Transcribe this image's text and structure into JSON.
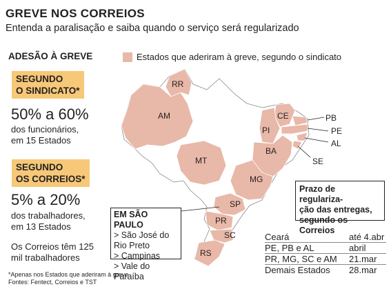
{
  "header": {
    "title": "GREVE NOS CORREIOS",
    "subtitle": "Entenda a paralisação e saiba quando o serviço será regularizado"
  },
  "adesao": {
    "heading": "ADESÃO À GREVE",
    "sindicato_label_1": "SEGUNDO",
    "sindicato_label_2": "O SINDICATO*",
    "sindicato_pct": "50% a 60%",
    "sindicato_desc_1": "dos funcionários,",
    "sindicato_desc_2": "em 15 Estados",
    "correios_label_1": "SEGUNDO",
    "correios_label_2": "OS CORREIOS*",
    "correios_pct": "5% a 20%",
    "correios_desc_1": "dos trabalhadores,",
    "correios_desc_2": "em 13 Estados",
    "note_1": "Os Correios têm 125",
    "note_2": "mil trabalhadores"
  },
  "footnote": {
    "line1": "*Apenas nos Estados que aderiram à greve",
    "line2": "Fontes: Fentect, Correios e TST"
  },
  "legend": {
    "label": "Estados que aderiram à greve, segundo o sindicato",
    "color": "#e8b8a8"
  },
  "map_labels": {
    "RR": "RR",
    "AM": "AM",
    "MT": "MT",
    "CE": "CE",
    "PI": "PI",
    "PB": "PB",
    "PE": "PE",
    "AL": "AL",
    "BA": "BA",
    "SE": "SE",
    "MG": "MG",
    "SP": "SP",
    "PR": "PR",
    "SC": "SC",
    "RS": "RS"
  },
  "sao_paulo": {
    "heading": "EM SÃO PAULO",
    "items": [
      "> São José do",
      "Rio Preto",
      "> Campinas",
      "> Vale do Paraíba"
    ]
  },
  "prazo": {
    "line1": "Prazo de regulariza-",
    "line2": "ção das entregas,",
    "line3": "segundo os Correios"
  },
  "schedule": [
    {
      "state": "Ceará",
      "date": "até 4.abr"
    },
    {
      "state": "PE, PB e AL",
      "date": "abril"
    },
    {
      "state": "PR, MG, SC e AM",
      "date": "21.mar"
    },
    {
      "state": "Demais Estados",
      "date": "28.mar"
    }
  ]
}
